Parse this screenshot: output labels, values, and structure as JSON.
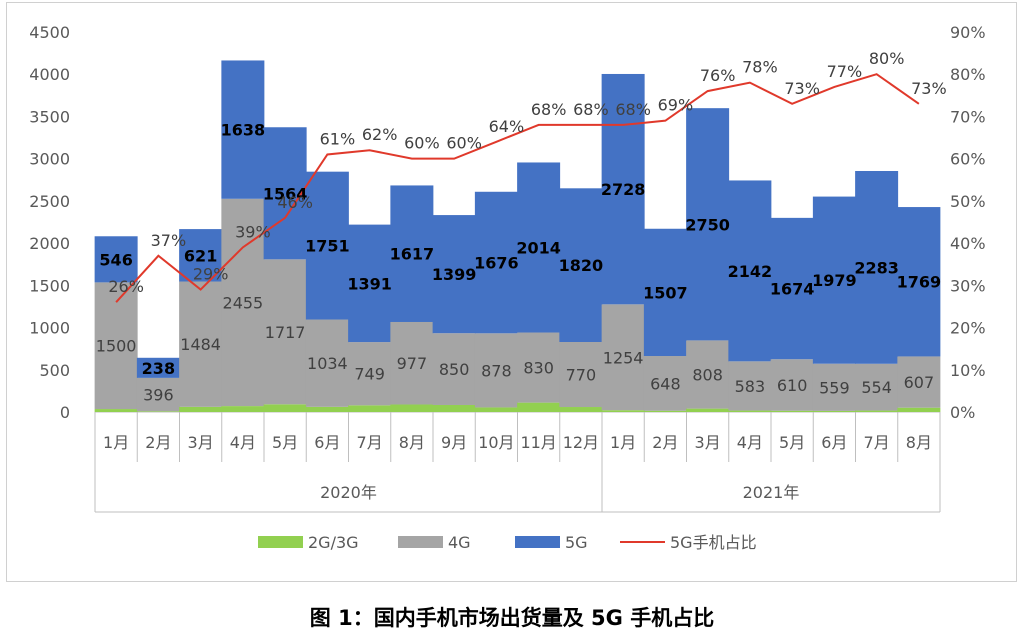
{
  "chart_data": {
    "type": "bar",
    "categories": [
      "1月",
      "2月",
      "3月",
      "4月",
      "5月",
      "6月",
      "7月",
      "8月",
      "9月",
      "10月",
      "11月",
      "12月",
      "1月",
      "2月",
      "3月",
      "4月",
      "5月",
      "6月",
      "7月",
      "8月"
    ],
    "year_groups": [
      {
        "label": "2020年",
        "count": 12
      },
      {
        "label": "2021年",
        "count": 8
      }
    ],
    "series": [
      {
        "name": "2G/3G",
        "color": "#92d050",
        "values": [
          35,
          8,
          61,
          70,
          91,
          61,
          79,
          89,
          83,
          54,
          111,
          59,
          21,
          15,
          40,
          17,
          15,
          13,
          17,
          51
        ]
      },
      {
        "name": "4G",
        "color": "#a5a5a5",
        "values": [
          1500,
          396,
          1484,
          2455,
          1717,
          1034,
          749,
          977,
          850,
          878,
          830,
          770,
          1254,
          648,
          808,
          583,
          610,
          559,
          554,
          607
        ]
      },
      {
        "name": "5G",
        "color": "#4472c4",
        "values": [
          546,
          238,
          621,
          1638,
          1564,
          1751,
          1391,
          1617,
          1399,
          1676,
          2014,
          1820,
          2728,
          1507,
          2750,
          2142,
          1674,
          1979,
          2283,
          1769
        ]
      }
    ],
    "line": {
      "name": "5G手机占比",
      "color": "#e0392b",
      "labels": [
        "26%",
        "37%",
        "29%",
        "39%",
        "46%",
        "61%",
        "62%",
        "60%",
        "60%",
        "64%",
        "68%",
        "68%",
        "68%",
        "69%",
        "76%",
        "78%",
        "73%",
        "77%",
        "80%",
        "73%"
      ],
      "values": [
        26,
        37,
        29,
        39,
        46,
        61,
        62,
        60,
        60,
        64,
        68,
        68,
        68,
        69,
        76,
        78,
        73,
        77,
        80,
        73
      ]
    },
    "y_left": {
      "min": 0,
      "max": 4500,
      "step": 500,
      "ticks": [
        "0",
        "500",
        "1000",
        "1500",
        "2000",
        "2500",
        "3000",
        "3500",
        "4000",
        "4500"
      ]
    },
    "y_right": {
      "min": 0,
      "max": 90,
      "step": 10,
      "ticks": [
        "0%",
        "10%",
        "20%",
        "30%",
        "40%",
        "50%",
        "60%",
        "70%",
        "80%",
        "90%"
      ]
    },
    "grid": false,
    "legend_position": "bottom"
  },
  "caption": "图 1：国内手机市场出货量及 5G 手机占比"
}
